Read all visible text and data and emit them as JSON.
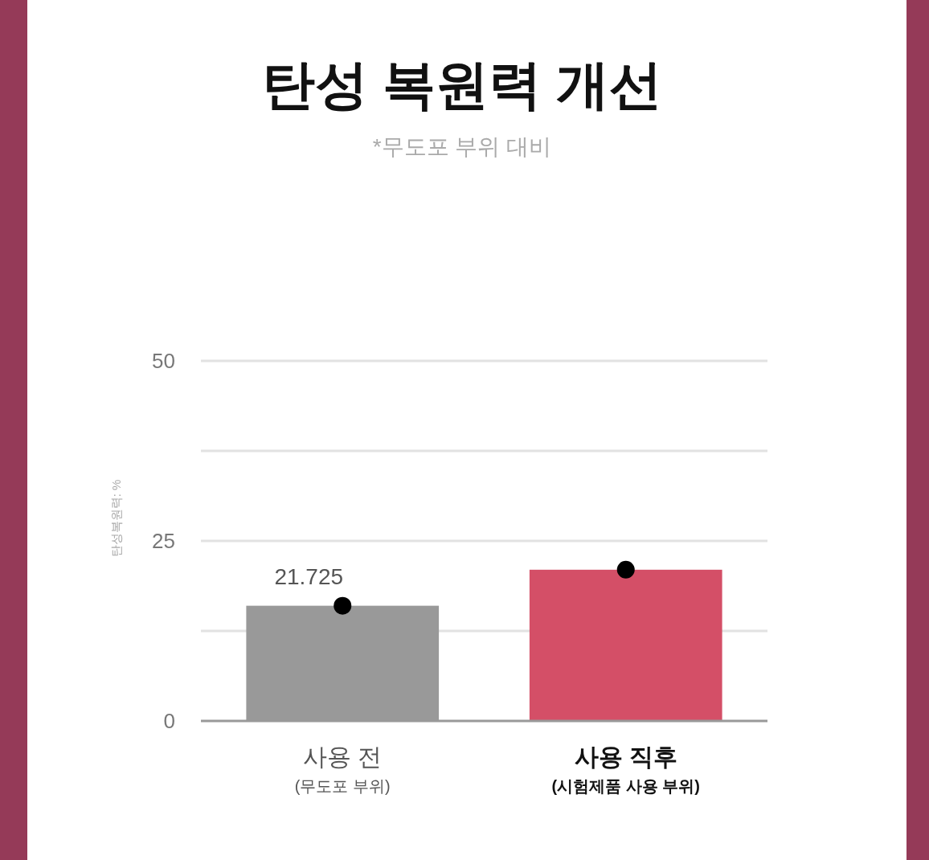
{
  "chart_data": {
    "type": "bar",
    "title": "탄성 복원력 개선",
    "subtitle": "*무도포 부위 대비",
    "ylabel": "탄성복원력: %",
    "categories": [
      "사용 전\n(무도포 부위)",
      "사용 직후\n(시험제품 사용 부위)"
    ],
    "series": [
      {
        "type": "bar",
        "colors": [
          "#999999",
          "#d44f67"
        ],
        "values": [
          16,
          21
        ]
      },
      {
        "type": "scatter",
        "x": [
          "사용 전\n(무도포 부위)",
          "사용 직후\n(시험제품 사용 부위)"
        ],
        "color": "#000000",
        "marker": "circle",
        "values": [
          16,
          21
        ]
      }
    ],
    "annotations": [
      "21.725"
    ],
    "ylim": [
      0,
      50
    ],
    "yticks": [
      0,
      {
        "value": 12.5,
        "label": null
      },
      25,
      {
        "value": 37.5,
        "label": null
      },
      50
    ],
    "grid": "y"
  }
}
